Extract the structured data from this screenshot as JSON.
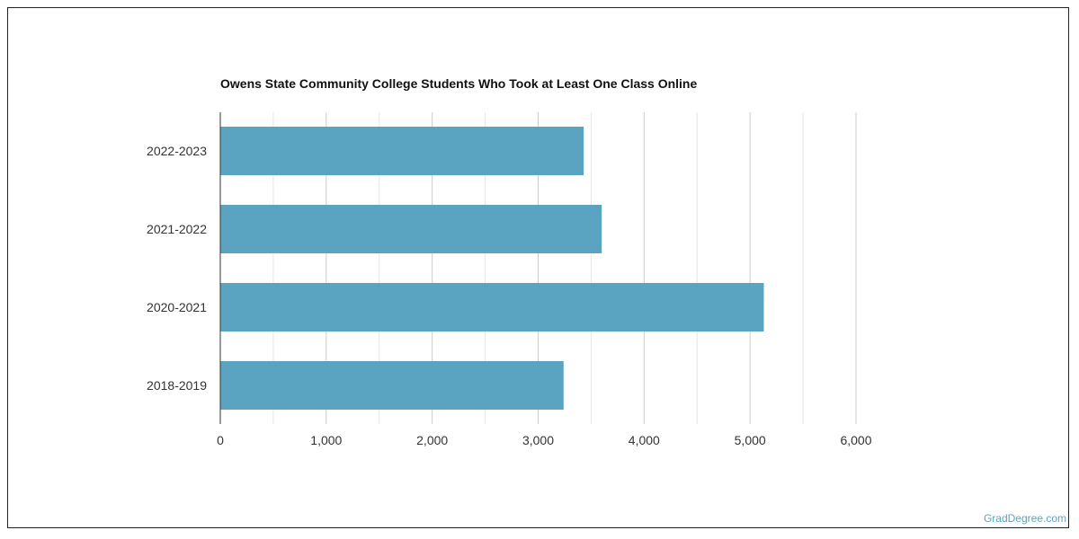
{
  "chart_data": {
    "type": "bar",
    "orientation": "horizontal",
    "title": "Owens State Community College Students Who Took at Least One Class Online",
    "categories": [
      "2022-2023",
      "2021-2022",
      "2020-2021",
      "2018-2019"
    ],
    "values": [
      3430,
      3600,
      5130,
      3240
    ],
    "xlim": [
      0,
      6000
    ],
    "x_ticks": [
      "0",
      "1,000",
      "2,000",
      "3,000",
      "4,000",
      "5,000",
      "6,000"
    ],
    "grid": true,
    "bar_color": "#5ba4c1"
  },
  "credit": "GradDegree.com"
}
